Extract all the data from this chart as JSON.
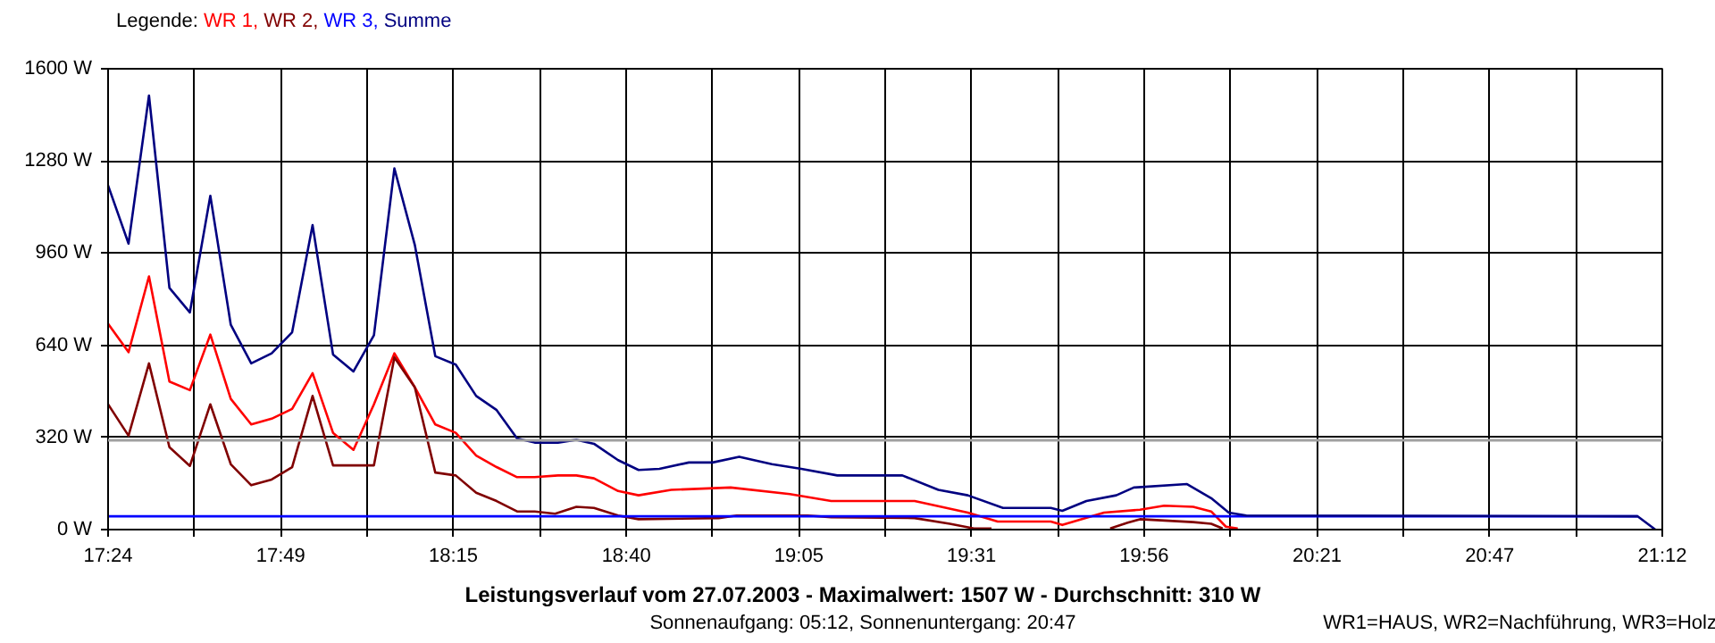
{
  "chart_data": {
    "type": "line",
    "title": "Leistungsverlauf vom 27.07.2003 - Maximalwert: 1507 W - Durchschnitt: 310 W",
    "subtitle": "Sonnenaufgang: 05:12, Sonnenuntergang: 20:47",
    "legend_title": "Legende:",
    "annotations": [
      "WR1=HAUS, WR2=Nachführung, WR3=Holz"
    ],
    "xlim": [
      17.4,
      21.2
    ],
    "ylim": [
      0,
      1600
    ],
    "xticks": [
      {
        "value": 17.4,
        "label": "17:24"
      },
      {
        "value": 17.611,
        "label": null
      },
      {
        "value": 17.822,
        "label": "17:49"
      },
      {
        "value": 18.033,
        "label": null
      },
      {
        "value": 18.244,
        "label": "18:15"
      },
      {
        "value": 18.456,
        "label": null
      },
      {
        "value": 18.667,
        "label": "18:40"
      },
      {
        "value": 18.878,
        "label": null
      },
      {
        "value": 19.089,
        "label": "19:05"
      },
      {
        "value": 19.3,
        "label": null
      },
      {
        "value": 19.511,
        "label": "19:31"
      },
      {
        "value": 19.722,
        "label": null
      },
      {
        "value": 19.933,
        "label": "19:56"
      },
      {
        "value": 20.144,
        "label": null
      },
      {
        "value": 20.356,
        "label": "20:21"
      },
      {
        "value": 20.567,
        "label": null
      },
      {
        "value": 20.778,
        "label": "20:47"
      },
      {
        "value": 20.989,
        "label": null
      },
      {
        "value": 21.2,
        "label": "21:12"
      }
    ],
    "yticks": [
      {
        "value": 0,
        "label": "0 W"
      },
      {
        "value": 320,
        "label": "320 W"
      },
      {
        "value": 640,
        "label": "640 W"
      },
      {
        "value": 960,
        "label": "960 W"
      },
      {
        "value": 1280,
        "label": "1280 W"
      },
      {
        "value": 1600,
        "label": "1600 W"
      }
    ],
    "grid": true,
    "legend": "top left",
    "marker": "none",
    "line_style": "solid",
    "ref_lines": [
      {
        "axis": "y",
        "value": 310,
        "color": "#a0a0a0"
      }
    ],
    "series": [
      {
        "name": "WR 1,",
        "color": "#ff0000",
        "x": [
          17.4,
          17.45,
          17.5,
          17.55,
          17.6,
          17.65,
          17.7,
          17.75,
          17.8,
          17.85,
          17.9,
          17.95,
          18.0,
          18.05,
          18.1,
          18.15,
          18.2,
          18.25,
          18.3,
          18.35,
          18.4,
          18.443,
          18.5,
          18.545,
          18.588,
          18.647,
          18.697,
          18.777,
          18.922,
          19.067,
          19.168,
          19.372,
          19.502,
          19.575,
          19.705,
          19.733,
          19.835,
          19.923,
          19.982,
          20.053,
          20.097,
          20.133,
          20.162
        ],
        "values": [
          715,
          616,
          879,
          514,
          484,
          677,
          454,
          365,
          385,
          419,
          543,
          336,
          277,
          435,
          612,
          494,
          365,
          336,
          257,
          217,
          182,
          182,
          188,
          188,
          178,
          134,
          119,
          138,
          146,
          123,
          99,
          99,
          59,
          28,
          28,
          16,
          59,
          69,
          83,
          79,
          63,
          10,
          4
        ]
      },
      {
        "name": "WR 2,",
        "color": "#800000",
        "x": [
          17.4,
          17.45,
          17.5,
          17.55,
          17.6,
          17.65,
          17.7,
          17.75,
          17.8,
          17.85,
          17.9,
          17.95,
          18.0,
          18.05,
          18.1,
          18.15,
          18.2,
          18.25,
          18.3,
          18.35,
          18.4,
          18.443,
          18.493,
          18.545,
          18.588,
          18.647,
          18.697,
          18.893,
          18.937,
          19.11,
          19.168,
          19.372,
          19.458,
          19.517,
          19.56,
          19.7,
          19.85,
          19.893,
          19.923,
          20.053,
          20.097,
          20.125
        ],
        "values": [
          435,
          326,
          577,
          286,
          221,
          435,
          227,
          154,
          174,
          217,
          464,
          223,
          223,
          223,
          598,
          494,
          198,
          188,
          128,
          99,
          63,
          63,
          55,
          79,
          75,
          49,
          36,
          40,
          49,
          49,
          43,
          40,
          20,
          4,
          4,
          null,
          4,
          24,
          36,
          26,
          20,
          4
        ]
      },
      {
        "name": "WR 3,",
        "color": "#0000ff",
        "x": [
          17.4,
          21.14
        ],
        "values": [
          46,
          46
        ]
      },
      {
        "name": "Summe",
        "color": "#000080",
        "x": [
          17.4,
          17.45,
          17.5,
          17.55,
          17.6,
          17.65,
          17.7,
          17.75,
          17.8,
          17.85,
          17.9,
          17.95,
          18.0,
          18.05,
          18.1,
          18.15,
          18.2,
          18.25,
          18.3,
          18.35,
          18.4,
          18.443,
          18.5,
          18.545,
          18.588,
          18.647,
          18.697,
          18.748,
          18.82,
          18.878,
          18.943,
          19.023,
          19.095,
          19.183,
          19.342,
          19.43,
          19.502,
          19.588,
          19.705,
          19.733,
          19.792,
          19.865,
          19.908,
          20.038,
          20.097,
          20.14,
          20.183,
          21.14,
          21.183
        ],
        "values": [
          1195,
          993,
          1507,
          839,
          754,
          1159,
          711,
          577,
          612,
          685,
          1057,
          608,
          549,
          675,
          1254,
          988,
          602,
          573,
          464,
          415,
          316,
          302,
          302,
          312,
          298,
          241,
          207,
          211,
          233,
          233,
          253,
          227,
          211,
          188,
          188,
          138,
          119,
          75,
          75,
          65,
          99,
          119,
          146,
          158,
          109,
          59,
          49,
          46,
          0
        ]
      }
    ]
  }
}
